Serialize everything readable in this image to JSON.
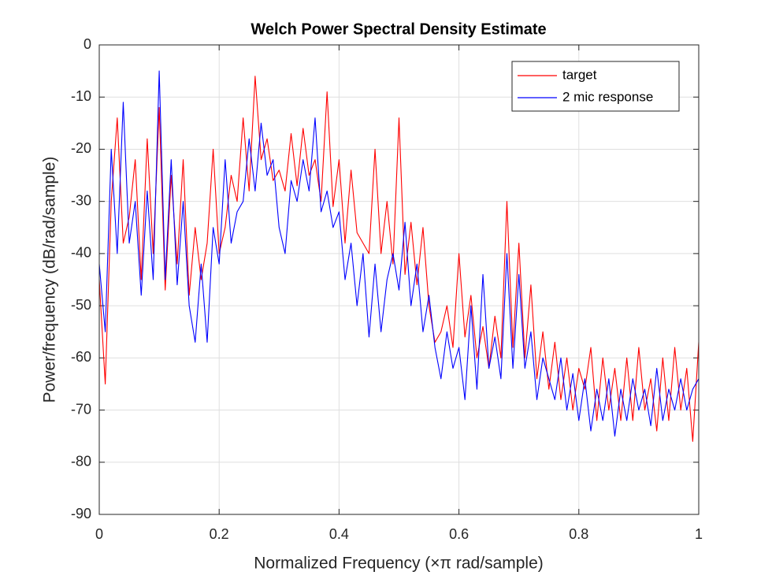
{
  "chart_data": {
    "type": "line",
    "title": "Welch Power Spectral Density Estimate",
    "xlabel": "Normalized Frequency  (×π rad/sample)",
    "ylabel": "Power/frequency (dB/rad/sample)",
    "x": [
      0,
      0.01,
      0.02,
      0.03,
      0.04,
      0.05,
      0.06,
      0.07,
      0.08,
      0.09,
      0.1,
      0.11,
      0.12,
      0.13,
      0.14,
      0.15,
      0.16,
      0.17,
      0.18,
      0.19,
      0.2,
      0.21,
      0.22,
      0.23,
      0.24,
      0.25,
      0.26,
      0.27,
      0.28,
      0.29,
      0.3,
      0.31,
      0.32,
      0.33,
      0.34,
      0.35,
      0.36,
      0.37,
      0.38,
      0.39,
      0.4,
      0.41,
      0.42,
      0.43,
      0.44,
      0.45,
      0.46,
      0.47,
      0.48,
      0.49,
      0.5,
      0.51,
      0.52,
      0.53,
      0.54,
      0.55,
      0.56,
      0.57,
      0.58,
      0.59,
      0.6,
      0.61,
      0.62,
      0.63,
      0.64,
      0.65,
      0.66,
      0.67,
      0.68,
      0.69,
      0.7,
      0.71,
      0.72,
      0.73,
      0.74,
      0.75,
      0.76,
      0.77,
      0.78,
      0.79,
      0.8,
      0.81,
      0.82,
      0.83,
      0.84,
      0.85,
      0.86,
      0.87,
      0.88,
      0.89,
      0.9,
      0.91,
      0.92,
      0.93,
      0.94,
      0.95,
      0.96,
      0.97,
      0.98,
      0.99,
      1
    ],
    "series": [
      {
        "name": "target",
        "color": "#ff0000",
        "values": [
          -45,
          -65,
          -30,
          -14,
          -38,
          -33,
          -22,
          -45,
          -18,
          -40,
          -12,
          -47,
          -25,
          -42,
          -22,
          -48,
          -35,
          -45,
          -38,
          -20,
          -40,
          -35,
          -25,
          -30,
          -14,
          -28,
          -6,
          -22,
          -18,
          -26,
          -24,
          -28,
          -17,
          -27,
          -16,
          -25,
          -22,
          -30,
          -9,
          -31,
          -22,
          -38,
          -24,
          -36,
          -38,
          -40,
          -20,
          -40,
          -30,
          -42,
          -14,
          -44,
          -34,
          -46,
          -35,
          -50,
          -57,
          -55,
          -50,
          -58,
          -40,
          -56,
          -48,
          -60,
          -54,
          -62,
          -52,
          -60,
          -30,
          -58,
          -38,
          -60,
          -46,
          -64,
          -55,
          -66,
          -57,
          -68,
          -60,
          -70,
          -62,
          -66,
          -58,
          -72,
          -60,
          -70,
          -62,
          -72,
          -60,
          -72,
          -58,
          -70,
          -64,
          -74,
          -60,
          -72,
          -58,
          -70,
          -62,
          -76,
          -57
        ]
      },
      {
        "name": "2 mic response",
        "color": "#0000ff",
        "values": [
          -42,
          -55,
          -20,
          -40,
          -11,
          -38,
          -30,
          -48,
          -28,
          -45,
          -5,
          -45,
          -22,
          -46,
          -30,
          -50,
          -57,
          -42,
          -57,
          -35,
          -42,
          -22,
          -38,
          -32,
          -30,
          -18,
          -28,
          -15,
          -25,
          -22,
          -35,
          -40,
          -26,
          -30,
          -22,
          -28,
          -14,
          -32,
          -28,
          -35,
          -32,
          -45,
          -38,
          -50,
          -40,
          -56,
          -42,
          -55,
          -45,
          -40,
          -47,
          -34,
          -50,
          -42,
          -55,
          -48,
          -58,
          -64,
          -55,
          -62,
          -58,
          -68,
          -50,
          -66,
          -44,
          -62,
          -56,
          -64,
          -40,
          -62,
          -44,
          -62,
          -55,
          -68,
          -60,
          -64,
          -68,
          -60,
          -70,
          -63,
          -72,
          -64,
          -74,
          -66,
          -72,
          -64,
          -75,
          -66,
          -72,
          -64,
          -70,
          -66,
          -73,
          -62,
          -72,
          -66,
          -70,
          -64,
          -70,
          -66,
          -64
        ]
      }
    ],
    "xlim": [
      0,
      1
    ],
    "ylim": [
      -90,
      0
    ],
    "xticks": [
      0,
      0.2,
      0.4,
      0.6,
      0.8,
      1
    ],
    "yticks": [
      -90,
      -80,
      -70,
      -60,
      -50,
      -40,
      -30,
      -20,
      -10,
      0
    ],
    "grid": true,
    "legend": "northeast"
  }
}
